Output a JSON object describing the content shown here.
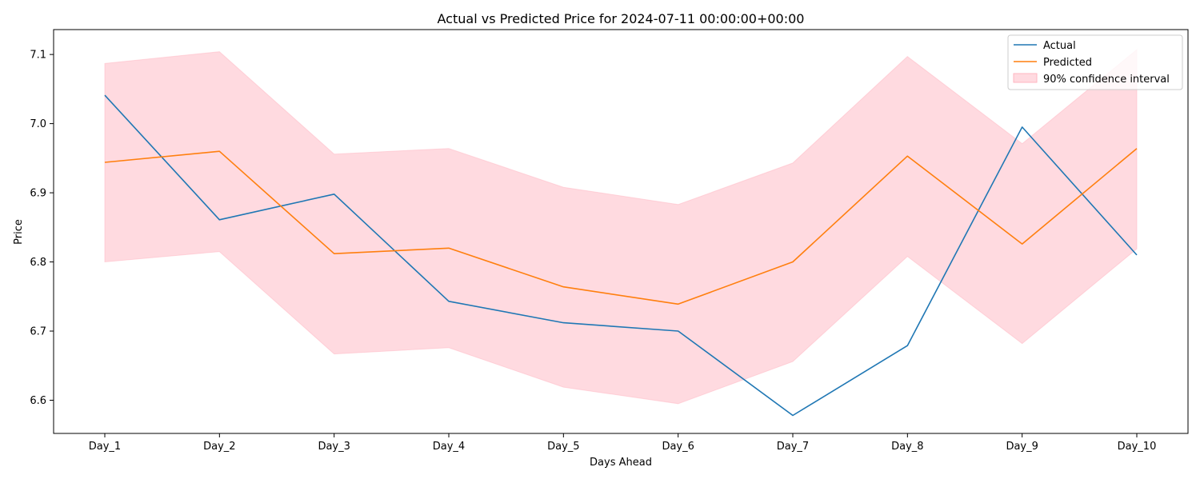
{
  "chart_data": {
    "type": "line",
    "title": "Actual vs Predicted Price for 2024-07-11 00:00:00+00:00",
    "xlabel": "Days Ahead",
    "ylabel": "Price",
    "categories": [
      "Day_1",
      "Day_2",
      "Day_3",
      "Day_4",
      "Day_5",
      "Day_6",
      "Day_7",
      "Day_8",
      "Day_9",
      "Day_10"
    ],
    "ylim": [
      6.552,
      7.136
    ],
    "yticks": [
      "6.6",
      "6.7",
      "6.8",
      "6.9",
      "7.0",
      "7.1"
    ],
    "ytick_values": [
      6.6,
      6.7,
      6.8,
      6.9,
      7.0,
      7.1
    ],
    "grid": false,
    "legend_position": "top-right",
    "series": [
      {
        "name": "Actual",
        "color": "#1f77b4",
        "values": [
          7.041,
          6.861,
          6.898,
          6.743,
          6.712,
          6.7,
          6.578,
          6.679,
          6.995,
          6.81
        ]
      },
      {
        "name": "Predicted",
        "color": "#ff7f0e",
        "values": [
          6.944,
          6.96,
          6.812,
          6.82,
          6.764,
          6.739,
          6.8,
          6.953,
          6.826,
          6.964
        ]
      }
    ],
    "band": {
      "name": "90% confidence interval",
      "color": "#ffb6c1",
      "lower": [
        6.8,
        6.815,
        6.667,
        6.676,
        6.619,
        6.595,
        6.656,
        6.808,
        6.682,
        6.819
      ],
      "upper": [
        7.087,
        7.104,
        6.956,
        6.964,
        6.908,
        6.883,
        6.943,
        7.097,
        6.971,
        7.107
      ]
    }
  }
}
